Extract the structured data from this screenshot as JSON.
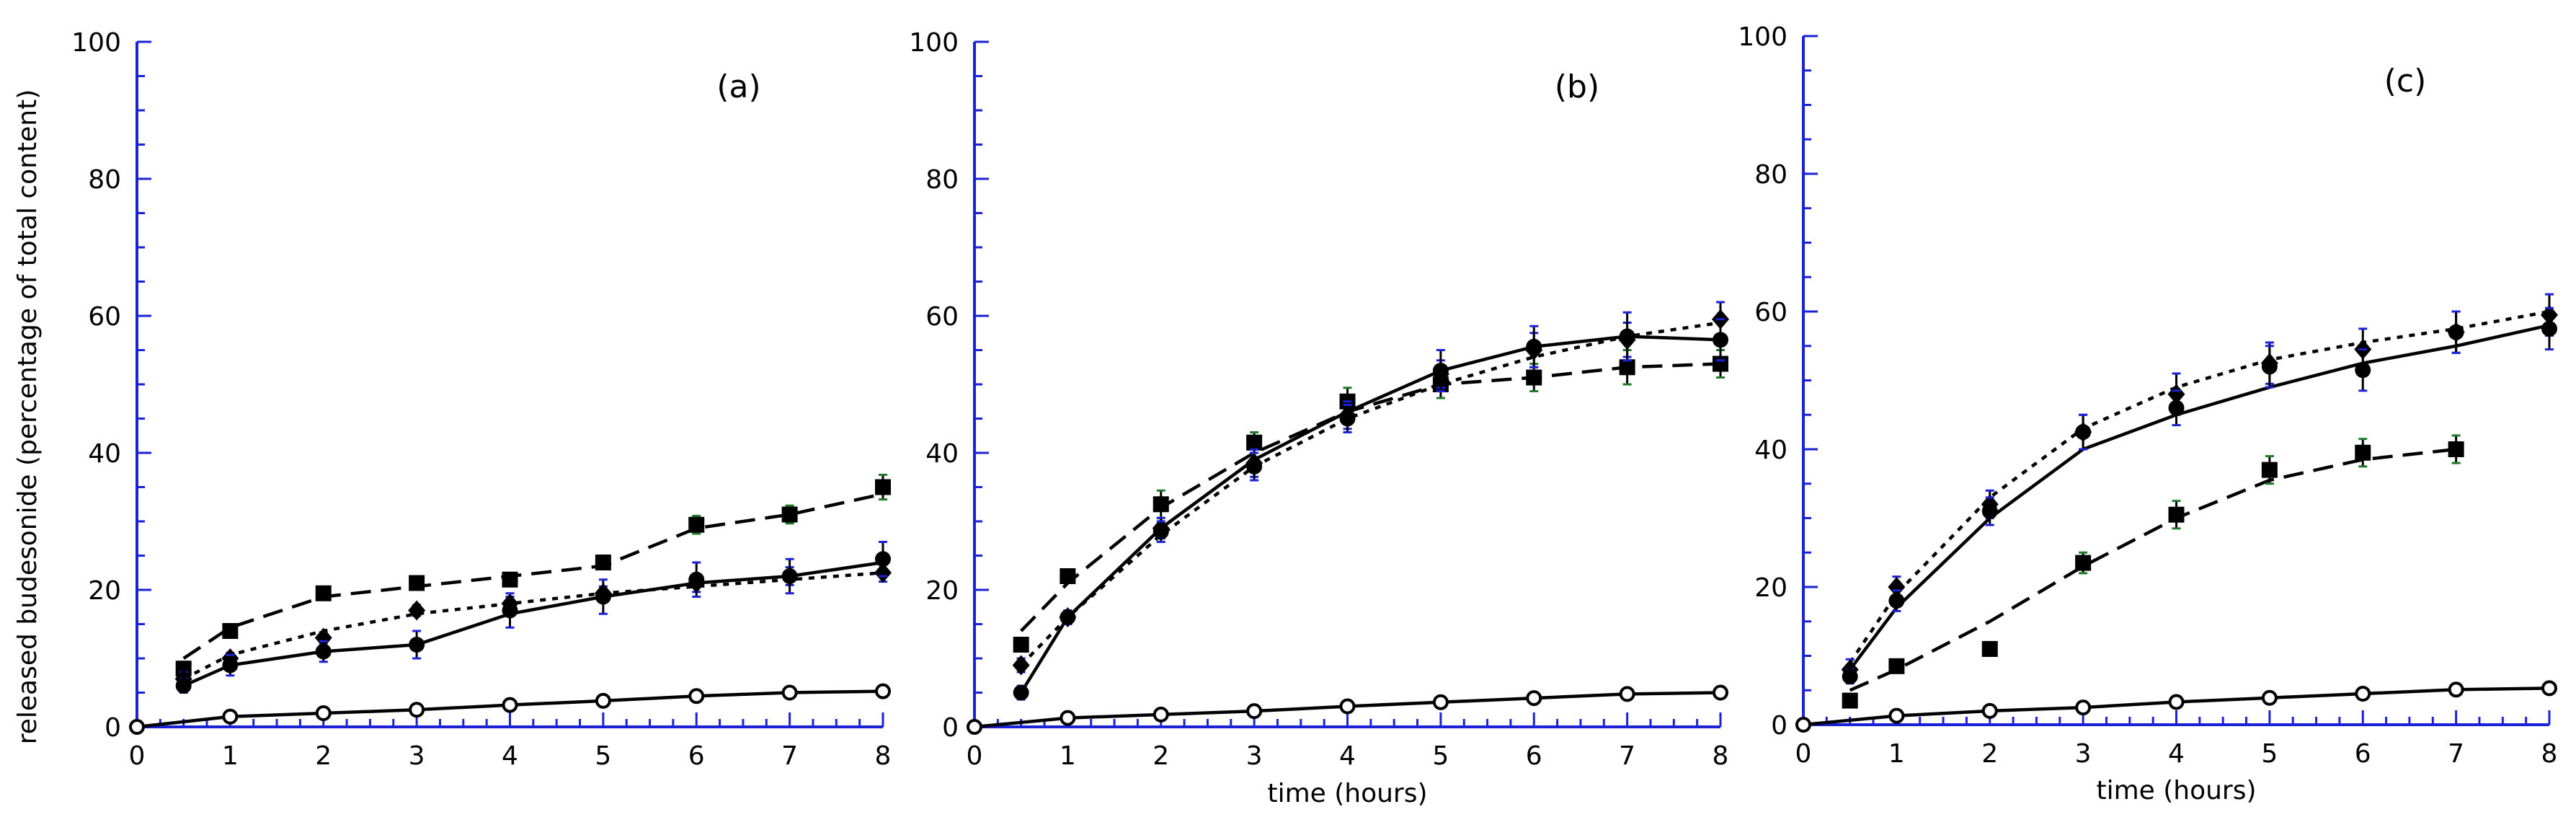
{
  "figure": {
    "ylabel": "released budesonide (percentage of total content)",
    "xlabel": "time (hours)"
  },
  "colors": {
    "axis": "#1a22d8",
    "line": "#000000",
    "errorbar_green": "#1f7a2a",
    "errorbar_blue": "#1a22d8"
  },
  "chart_data": [
    {
      "type": "line",
      "panel_label": "(a)",
      "xlabel": "",
      "xlim": [
        0,
        8
      ],
      "ylim": [
        0,
        100
      ],
      "xticks": [
        "0",
        "1",
        "2",
        "3",
        "4",
        "5",
        "6",
        "7",
        "8"
      ],
      "yticks": [
        "0",
        "20",
        "40",
        "60",
        "80",
        "100"
      ],
      "series": [
        {
          "name": "squares",
          "marker": "square",
          "line": "dashed",
          "x": [
            0.5,
            1,
            2,
            3,
            4,
            5,
            6,
            7,
            8
          ],
          "y": [
            8.5,
            14,
            19.5,
            21,
            21.5,
            24,
            29.5,
            31,
            35
          ],
          "err": [
            1,
            0.8,
            0.8,
            0.7,
            0.8,
            1,
            1.3,
            1.3,
            1.8
          ],
          "errcolor": "green",
          "fit_x": [
            0.5,
            1,
            2,
            3,
            4,
            5,
            6,
            7,
            8
          ],
          "fit_y": [
            10,
            14.5,
            19,
            20.5,
            22,
            23.5,
            29,
            31,
            34
          ]
        },
        {
          "name": "diamonds",
          "marker": "diamond",
          "line": "dotted",
          "x": [
            0.5,
            1,
            2,
            3,
            4,
            5,
            6,
            7,
            8
          ],
          "y": [
            7,
            10,
            13,
            17,
            18,
            19.5,
            21,
            22,
            22.5
          ],
          "err": [
            1,
            0.8,
            0.8,
            0.8,
            1,
            1,
            1.3,
            1.3,
            1.3
          ],
          "errcolor": "blue",
          "fit_x": [
            0.5,
            1,
            2,
            3,
            4,
            5,
            6,
            7,
            8
          ],
          "fit_y": [
            7,
            10.5,
            14,
            16.5,
            18,
            19.5,
            20.5,
            21.5,
            22.5
          ]
        },
        {
          "name": "circles",
          "marker": "circle",
          "line": "solid",
          "x": [
            0.5,
            1,
            2,
            3,
            4,
            5,
            6,
            7,
            8
          ],
          "y": [
            6,
            9,
            11,
            12,
            17,
            19,
            21.5,
            22,
            24.5
          ],
          "err": [
            1,
            1.5,
            1.5,
            2,
            2.5,
            2.5,
            2.5,
            2.5,
            2.5
          ],
          "errcolor": "blue",
          "fit_x": [
            0.5,
            1,
            2,
            3,
            4,
            5,
            6,
            7,
            8
          ],
          "fit_y": [
            6,
            9,
            11,
            12,
            16.5,
            19,
            21,
            22,
            24
          ]
        },
        {
          "name": "open-circles",
          "marker": "open-circle",
          "line": "solid",
          "x": [
            0,
            1,
            2,
            3,
            4,
            5,
            6,
            7,
            8
          ],
          "y": [
            0,
            1.5,
            2,
            2.5,
            3.2,
            3.8,
            4.5,
            5,
            5.2
          ],
          "err": [],
          "errcolor": "blue",
          "fit_x": [
            0,
            1,
            2,
            3,
            4,
            5,
            6,
            7,
            8
          ],
          "fit_y": [
            0,
            1.5,
            2,
            2.5,
            3.2,
            3.8,
            4.5,
            5,
            5.2
          ]
        }
      ]
    },
    {
      "type": "line",
      "panel_label": "(b)",
      "xlabel": "time (hours)",
      "xlim": [
        0,
        8
      ],
      "ylim": [
        0,
        100
      ],
      "xticks": [
        "0",
        "1",
        "2",
        "3",
        "4",
        "5",
        "6",
        "7",
        "8"
      ],
      "yticks": [
        "0",
        "20",
        "40",
        "60",
        "80",
        "100"
      ],
      "series": [
        {
          "name": "squares",
          "marker": "square",
          "line": "dashed",
          "x": [
            0.5,
            1,
            2,
            3,
            4,
            5,
            6,
            7,
            8
          ],
          "y": [
            12,
            22,
            32.5,
            41.5,
            47.5,
            50,
            51,
            52.5,
            53
          ],
          "err": [
            1,
            1,
            2,
            1.5,
            2,
            2,
            2,
            2.5,
            2
          ],
          "errcolor": "green",
          "fit_x": [
            0.5,
            1,
            2,
            3,
            4,
            5,
            6,
            7,
            8
          ],
          "fit_y": [
            14,
            21,
            32,
            40,
            46,
            50,
            51,
            52.5,
            53
          ]
        },
        {
          "name": "diamonds",
          "marker": "diamond",
          "line": "dotted",
          "x": [
            0.5,
            1,
            2,
            3,
            4,
            5,
            6,
            7,
            8
          ],
          "y": [
            9,
            16,
            29,
            38.5,
            45.5,
            51.5,
            55,
            56.5,
            59.5
          ],
          "err": [
            1,
            1,
            1.5,
            2,
            2,
            2,
            2.5,
            2.5,
            2.5
          ],
          "errcolor": "blue",
          "fit_x": [
            0.5,
            1,
            2,
            3,
            4,
            5,
            6,
            7,
            8
          ],
          "fit_y": [
            9,
            16,
            28,
            38,
            45,
            50,
            54,
            57,
            59
          ]
        },
        {
          "name": "circles",
          "marker": "circle",
          "line": "solid",
          "x": [
            0.5,
            1,
            2,
            3,
            4,
            5,
            6,
            7,
            8
          ],
          "y": [
            5,
            16,
            28.5,
            38,
            45,
            52,
            55.5,
            57,
            56.5
          ],
          "err": [
            1,
            1,
            1.5,
            2,
            2,
            3,
            3,
            3.5,
            3
          ],
          "errcolor": "blue",
          "fit_x": [
            0.5,
            1,
            2,
            3,
            4,
            5,
            6,
            7,
            8
          ],
          "fit_y": [
            5,
            16,
            29,
            39,
            46,
            52,
            55.5,
            57,
            56.5
          ]
        },
        {
          "name": "open-circles",
          "marker": "open-circle",
          "line": "solid",
          "x": [
            0,
            1,
            2,
            3,
            4,
            5,
            6,
            7,
            8
          ],
          "y": [
            0,
            1.3,
            1.8,
            2.3,
            3,
            3.6,
            4.2,
            4.8,
            5
          ],
          "err": [],
          "errcolor": "blue",
          "fit_x": [
            0,
            1,
            2,
            3,
            4,
            5,
            6,
            7,
            8
          ],
          "fit_y": [
            0,
            1.3,
            1.8,
            2.3,
            3,
            3.6,
            4.2,
            4.8,
            5
          ]
        }
      ]
    },
    {
      "type": "line",
      "panel_label": "(c)",
      "xlabel": "time (hours)",
      "xlim": [
        0,
        8
      ],
      "ylim": [
        0,
        100
      ],
      "xticks": [
        "0",
        "1",
        "2",
        "3",
        "4",
        "5",
        "6",
        "7",
        "8"
      ],
      "yticks": [
        "0",
        "20",
        "40",
        "60",
        "80",
        "100"
      ],
      "series": [
        {
          "name": "squares",
          "marker": "square",
          "line": "dashed",
          "x": [
            0.5,
            1,
            2,
            3,
            4,
            5,
            6,
            7
          ],
          "y": [
            3.5,
            8.5,
            11,
            23.5,
            30.5,
            37,
            39.5,
            40
          ],
          "err": [
            0.5,
            0.7,
            1,
            1.5,
            2,
            2,
            2,
            2
          ],
          "errcolor": "green",
          "fit_x": [
            0.5,
            1,
            2,
            3,
            4,
            5,
            6,
            7
          ],
          "fit_y": [
            5,
            8,
            15,
            23,
            30,
            35.5,
            38.5,
            40
          ]
        },
        {
          "name": "diamonds",
          "marker": "diamond",
          "line": "dotted",
          "x": [
            0.5,
            1,
            2,
            3,
            4,
            5,
            6,
            7,
            8
          ],
          "y": [
            8,
            20,
            32,
            42.5,
            48,
            52.5,
            54.5,
            57,
            59.5
          ],
          "err": [
            1.5,
            1.5,
            2,
            2.5,
            3,
            3,
            3,
            3,
            3
          ],
          "errcolor": "blue",
          "fit_x": [
            0.5,
            1,
            2,
            3,
            4,
            5,
            6,
            7,
            8
          ],
          "fit_y": [
            9,
            19,
            33,
            43,
            49,
            53,
            55.5,
            57.5,
            60
          ]
        },
        {
          "name": "circles",
          "marker": "circle",
          "line": "solid",
          "x": [
            0.5,
            1,
            2,
            3,
            4,
            5,
            6,
            7,
            8
          ],
          "y": [
            7,
            18,
            31,
            42.5,
            46,
            52,
            51.5,
            57,
            57.5
          ],
          "err": [
            1,
            1.5,
            2,
            2.5,
            2.5,
            3,
            3,
            3,
            3
          ],
          "errcolor": "blue",
          "fit_x": [
            0.5,
            1,
            2,
            3,
            4,
            5,
            6,
            7,
            8
          ],
          "fit_y": [
            8,
            17,
            30,
            40,
            45,
            49,
            52.5,
            55,
            58
          ]
        },
        {
          "name": "open-circles",
          "marker": "open-circle",
          "line": "solid",
          "x": [
            0,
            1,
            2,
            3,
            4,
            5,
            6,
            7,
            8
          ],
          "y": [
            0,
            1.3,
            2,
            2.5,
            3.3,
            3.9,
            4.5,
            5.1,
            5.3
          ],
          "err": [],
          "errcolor": "blue",
          "fit_x": [
            0,
            1,
            2,
            3,
            4,
            5,
            6,
            7,
            8
          ],
          "fit_y": [
            0,
            1.3,
            2,
            2.5,
            3.3,
            3.9,
            4.5,
            5.1,
            5.3
          ]
        }
      ]
    }
  ]
}
